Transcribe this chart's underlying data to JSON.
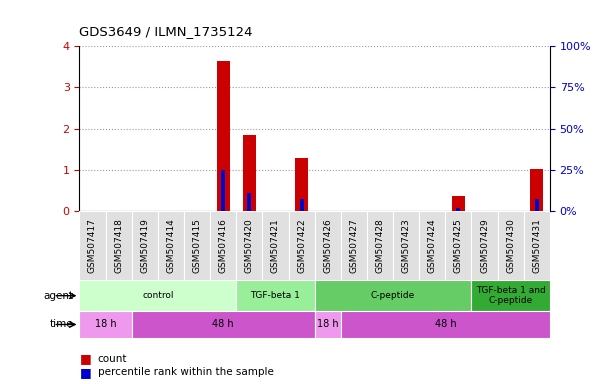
{
  "title": "GDS3649 / ILMN_1735124",
  "samples": [
    "GSM507417",
    "GSM507418",
    "GSM507419",
    "GSM507414",
    "GSM507415",
    "GSM507416",
    "GSM507420",
    "GSM507421",
    "GSM507422",
    "GSM507426",
    "GSM507427",
    "GSM507428",
    "GSM507423",
    "GSM507424",
    "GSM507425",
    "GSM507429",
    "GSM507430",
    "GSM507431"
  ],
  "count_values": [
    0,
    0,
    0,
    0,
    0,
    3.65,
    1.85,
    0,
    1.3,
    0,
    0,
    0,
    0,
    0,
    0.38,
    0,
    0,
    1.02
  ],
  "percentile_values": [
    0,
    0,
    0,
    0,
    0,
    25.0,
    11.0,
    0,
    7.5,
    0,
    0,
    0,
    0,
    0,
    2.0,
    0,
    0,
    7.5
  ],
  "ylim_left": [
    0,
    4
  ],
  "ylim_right": [
    0,
    100
  ],
  "yticks_left": [
    0,
    1,
    2,
    3,
    4
  ],
  "yticks_right": [
    0,
    25,
    50,
    75,
    100
  ],
  "agent_groups": [
    {
      "label": "control",
      "start": 0,
      "end": 6,
      "color": "#ccffcc"
    },
    {
      "label": "TGF-beta 1",
      "start": 6,
      "end": 9,
      "color": "#99ee99"
    },
    {
      "label": "C-peptide",
      "start": 9,
      "end": 15,
      "color": "#66cc66"
    },
    {
      "label": "TGF-beta 1 and\nC-peptide",
      "start": 15,
      "end": 18,
      "color": "#33aa33"
    }
  ],
  "time_groups": [
    {
      "label": "18 h",
      "start": 0,
      "end": 2,
      "color": "#ee99ee"
    },
    {
      "label": "48 h",
      "start": 2,
      "end": 9,
      "color": "#cc55cc"
    },
    {
      "label": "18 h",
      "start": 9,
      "end": 10,
      "color": "#ee99ee"
    },
    {
      "label": "48 h",
      "start": 10,
      "end": 18,
      "color": "#cc55cc"
    }
  ],
  "count_color": "#cc0000",
  "percentile_color": "#0000cc",
  "grid_color": "#999999",
  "axis_left_color": "#cc0000",
  "axis_right_color": "#0000cc",
  "label_fontsize": 7.5,
  "tick_fontsize": 6.5
}
